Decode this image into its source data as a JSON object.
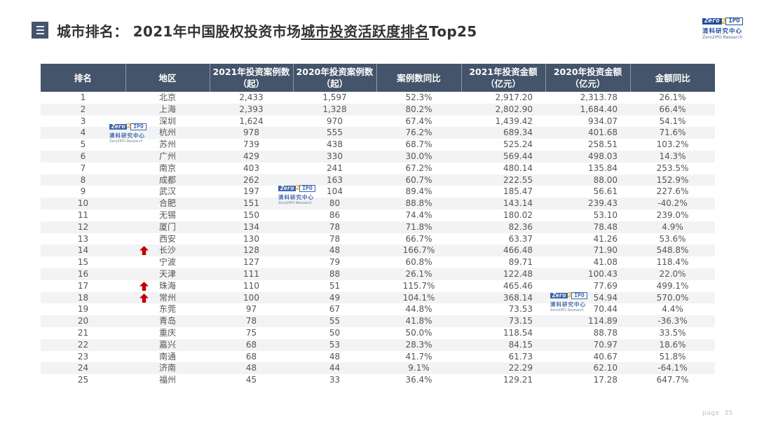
{
  "header": {
    "menu_icon": "list-icon",
    "title_prefix": "城市排名： 2021年中国股权投资市场",
    "title_underlined": "城市投资活跃度排名",
    "title_suffix": "Top25"
  },
  "logo": {
    "zero": "Zero",
    "two": "2",
    "ipo": "IPO",
    "cn": "清科研究中心",
    "en": "Zero2IPO Research"
  },
  "table": {
    "headers": [
      {
        "line1": "排名",
        "line2": ""
      },
      {
        "line1": "地区",
        "line2": ""
      },
      {
        "line1": "2021年投资案例数",
        "line2": "（起）"
      },
      {
        "line1": "2020年投资案例数",
        "line2": "（起）"
      },
      {
        "line1": "案例数同比",
        "line2": ""
      },
      {
        "line1": "2021年投资金额",
        "line2": "（亿元）"
      },
      {
        "line1": "2020年投资金额",
        "line2": "（亿元）"
      },
      {
        "line1": "金额同比",
        "line2": ""
      }
    ],
    "rows": [
      {
        "rank": "1",
        "region": "北京",
        "cases2021": "2,433",
        "cases2020": "1,597",
        "cases_yoy": "52.3%",
        "amt2021": "2,917.20",
        "amt2020": "2,313.78",
        "amt_yoy": "26.1%",
        "up": false
      },
      {
        "rank": "2",
        "region": "上海",
        "cases2021": "2,393",
        "cases2020": "1,328",
        "cases_yoy": "80.2%",
        "amt2021": "2,802.90",
        "amt2020": "1,684.40",
        "amt_yoy": "66.4%",
        "up": false
      },
      {
        "rank": "3",
        "region": "深圳",
        "cases2021": "1,624",
        "cases2020": "970",
        "cases_yoy": "67.4%",
        "amt2021": "1,439.42",
        "amt2020": "934.07",
        "amt_yoy": "54.1%",
        "up": false
      },
      {
        "rank": "4",
        "region": "杭州",
        "cases2021": "978",
        "cases2020": "555",
        "cases_yoy": "76.2%",
        "amt2021": "689.34",
        "amt2020": "401.68",
        "amt_yoy": "71.6%",
        "up": false
      },
      {
        "rank": "5",
        "region": "苏州",
        "cases2021": "739",
        "cases2020": "438",
        "cases_yoy": "68.7%",
        "amt2021": "525.24",
        "amt2020": "258.51",
        "amt_yoy": "103.2%",
        "up": false
      },
      {
        "rank": "6",
        "region": "广州",
        "cases2021": "429",
        "cases2020": "330",
        "cases_yoy": "30.0%",
        "amt2021": "569.44",
        "amt2020": "498.03",
        "amt_yoy": "14.3%",
        "up": false
      },
      {
        "rank": "7",
        "region": "南京",
        "cases2021": "403",
        "cases2020": "241",
        "cases_yoy": "67.2%",
        "amt2021": "480.14",
        "amt2020": "135.84",
        "amt_yoy": "253.5%",
        "up": false
      },
      {
        "rank": "8",
        "region": "成都",
        "cases2021": "262",
        "cases2020": "163",
        "cases_yoy": "60.7%",
        "amt2021": "222.55",
        "amt2020": "88.00",
        "amt_yoy": "152.9%",
        "up": false
      },
      {
        "rank": "9",
        "region": "武汉",
        "cases2021": "197",
        "cases2020": "104",
        "cases_yoy": "89.4%",
        "amt2021": "185.47",
        "amt2020": "56.61",
        "amt_yoy": "227.6%",
        "up": false
      },
      {
        "rank": "10",
        "region": "合肥",
        "cases2021": "151",
        "cases2020": "80",
        "cases_yoy": "88.8%",
        "amt2021": "143.14",
        "amt2020": "239.43",
        "amt_yoy": "-40.2%",
        "up": false
      },
      {
        "rank": "11",
        "region": "无锡",
        "cases2021": "150",
        "cases2020": "86",
        "cases_yoy": "74.4%",
        "amt2021": "180.02",
        "amt2020": "53.10",
        "amt_yoy": "239.0%",
        "up": false
      },
      {
        "rank": "12",
        "region": "厦门",
        "cases2021": "134",
        "cases2020": "78",
        "cases_yoy": "71.8%",
        "amt2021": "82.36",
        "amt2020": "78.48",
        "amt_yoy": "4.9%",
        "up": false
      },
      {
        "rank": "13",
        "region": "西安",
        "cases2021": "130",
        "cases2020": "78",
        "cases_yoy": "66.7%",
        "amt2021": "63.37",
        "amt2020": "41.26",
        "amt_yoy": "53.6%",
        "up": false
      },
      {
        "rank": "14",
        "region": "长沙",
        "cases2021": "128",
        "cases2020": "48",
        "cases_yoy": "166.7%",
        "amt2021": "466.48",
        "amt2020": "71.90",
        "amt_yoy": "548.8%",
        "up": true
      },
      {
        "rank": "15",
        "region": "宁波",
        "cases2021": "127",
        "cases2020": "79",
        "cases_yoy": "60.8%",
        "amt2021": "89.71",
        "amt2020": "41.08",
        "amt_yoy": "118.4%",
        "up": false
      },
      {
        "rank": "16",
        "region": "天津",
        "cases2021": "111",
        "cases2020": "88",
        "cases_yoy": "26.1%",
        "amt2021": "122.48",
        "amt2020": "100.43",
        "amt_yoy": "22.0%",
        "up": false
      },
      {
        "rank": "17",
        "region": "珠海",
        "cases2021": "110",
        "cases2020": "51",
        "cases_yoy": "115.7%",
        "amt2021": "465.46",
        "amt2020": "77.69",
        "amt_yoy": "499.1%",
        "up": true
      },
      {
        "rank": "18",
        "region": "常州",
        "cases2021": "100",
        "cases2020": "49",
        "cases_yoy": "104.1%",
        "amt2021": "368.14",
        "amt2020": "54.94",
        "amt_yoy": "570.0%",
        "up": true
      },
      {
        "rank": "19",
        "region": "东莞",
        "cases2021": "97",
        "cases2020": "67",
        "cases_yoy": "44.8%",
        "amt2021": "73.53",
        "amt2020": "70.44",
        "amt_yoy": "4.4%",
        "up": false
      },
      {
        "rank": "20",
        "region": "青岛",
        "cases2021": "78",
        "cases2020": "55",
        "cases_yoy": "41.8%",
        "amt2021": "73.15",
        "amt2020": "114.89",
        "amt_yoy": "-36.3%",
        "up": false
      },
      {
        "rank": "21",
        "region": "重庆",
        "cases2021": "75",
        "cases2020": "50",
        "cases_yoy": "50.0%",
        "amt2021": "118.54",
        "amt2020": "88.78",
        "amt_yoy": "33.5%",
        "up": false
      },
      {
        "rank": "22",
        "region": "嘉兴",
        "cases2021": "68",
        "cases2020": "53",
        "cases_yoy": "28.3%",
        "amt2021": "84.15",
        "amt2020": "70.97",
        "amt_yoy": "18.6%",
        "up": false
      },
      {
        "rank": "23",
        "region": "南通",
        "cases2021": "68",
        "cases2020": "48",
        "cases_yoy": "41.7%",
        "amt2021": "61.73",
        "amt2020": "40.67",
        "amt_yoy": "51.8%",
        "up": false
      },
      {
        "rank": "24",
        "region": "济南",
        "cases2021": "48",
        "cases2020": "44",
        "cases_yoy": "9.1%",
        "amt2021": "22.29",
        "amt2020": "62.10",
        "amt_yoy": "-64.1%",
        "up": false
      },
      {
        "rank": "25",
        "region": "福州",
        "cases2021": "45",
        "cases2020": "33",
        "cases_yoy": "36.4%",
        "amt2021": "129.21",
        "amt2020": "17.28",
        "amt_yoy": "647.7%",
        "up": false
      }
    ]
  },
  "colors": {
    "header_bg": "#44546a",
    "arrow_red": "#c00000",
    "logo_blue": "#1f4e9e",
    "logo_gold": "#f2b01e"
  },
  "footer": {
    "page_label": "page",
    "page_number": "35"
  }
}
